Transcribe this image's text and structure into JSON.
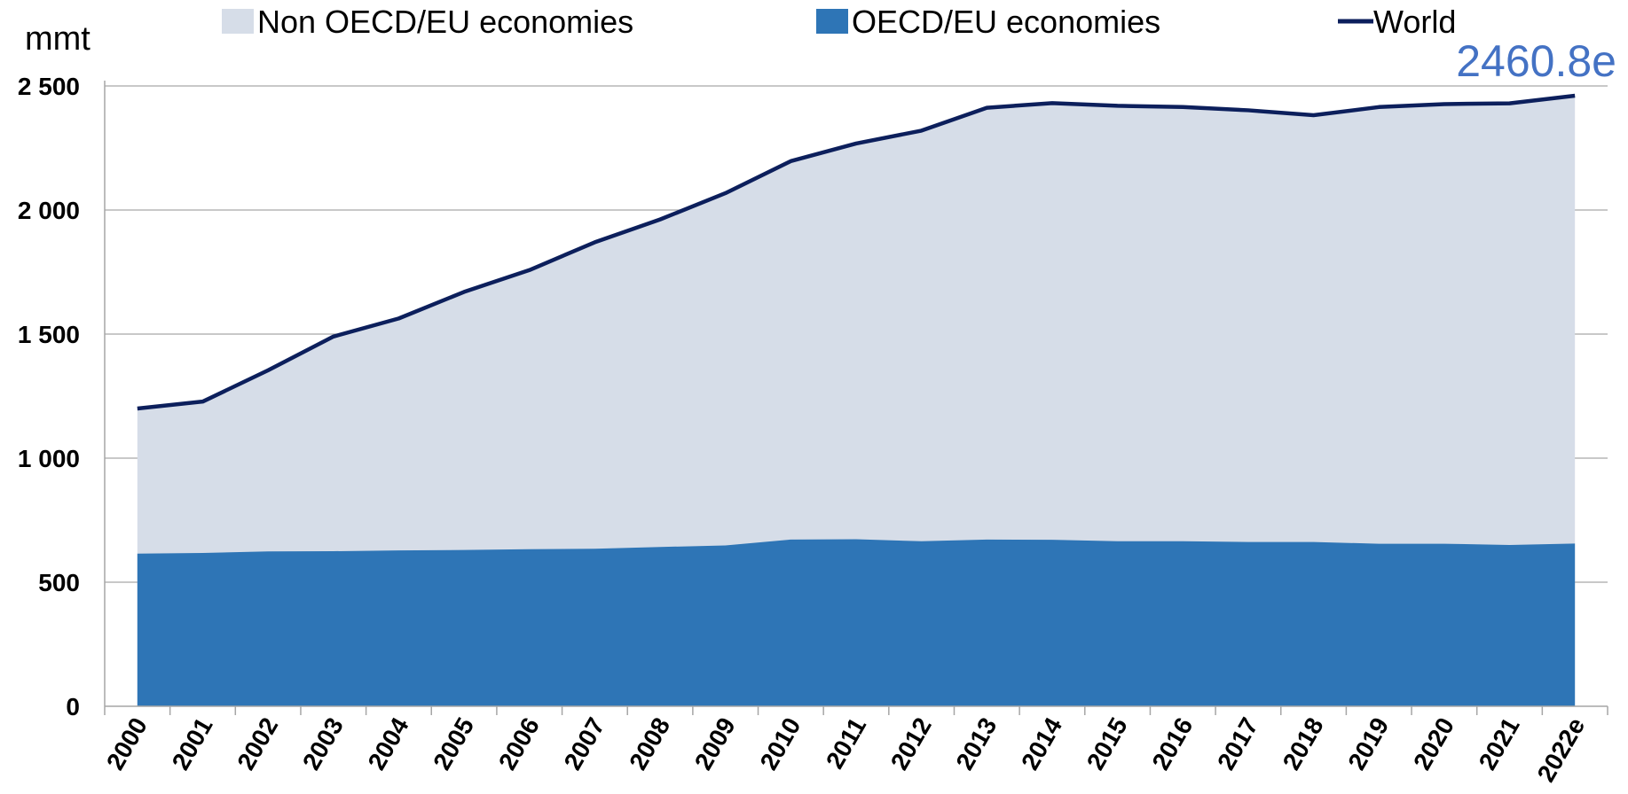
{
  "colors": {
    "non_oecd_fill": "#d6dde8",
    "oecd_fill": "#2e75b6",
    "world_line": "#0c1f5c",
    "end_label": "#4472c4",
    "gridline": "#a6a6a6"
  },
  "chart_data": {
    "type": "area",
    "title": "",
    "xlabel": "",
    "ylabel": "mmt",
    "ylim": [
      0,
      2500
    ],
    "yticks": [
      0,
      500,
      1000,
      1500,
      2000,
      2500
    ],
    "ytick_labels": [
      "0",
      "500",
      "1 000",
      "1 500",
      "2 000",
      "2 500"
    ],
    "grid": "horizontal",
    "legend_position": "top",
    "categories": [
      "2000",
      "2001",
      "2002",
      "2003",
      "2004",
      "2005",
      "2006",
      "2007",
      "2008",
      "2009",
      "2010",
      "2011",
      "2012",
      "2013",
      "2014",
      "2015",
      "2016",
      "2017",
      "2018",
      "2019",
      "2020",
      "2021",
      "2022e"
    ],
    "series": [
      {
        "name": "Non OECD/EU economies",
        "kind": "stacked-area",
        "values": [
          585,
          610,
          730,
          865,
          935,
          1040,
          1125,
          1235,
          1320,
          1420,
          1525,
          1595,
          1655,
          1740,
          1760,
          1755,
          1750,
          1740,
          1720,
          1760,
          1772,
          1780,
          1804.8
        ]
      },
      {
        "name": "OECD/EU economies",
        "kind": "stacked-area",
        "values": [
          615,
          618,
          624,
          625,
          628,
          630,
          633,
          635,
          642,
          648,
          672,
          673,
          665,
          672,
          671,
          665,
          665,
          662,
          662,
          655,
          655,
          650,
          656
        ]
      },
      {
        "name": "World",
        "kind": "line",
        "values": [
          1200,
          1228,
          1354,
          1490,
          1563,
          1670,
          1758,
          1870,
          1962,
          2068,
          2197,
          2268,
          2320,
          2412,
          2431,
          2420,
          2415,
          2402,
          2382,
          2415,
          2427,
          2430,
          2460.8
        ]
      }
    ],
    "annotations": [
      {
        "text": "2460.8e",
        "target": "2022e"
      }
    ]
  }
}
